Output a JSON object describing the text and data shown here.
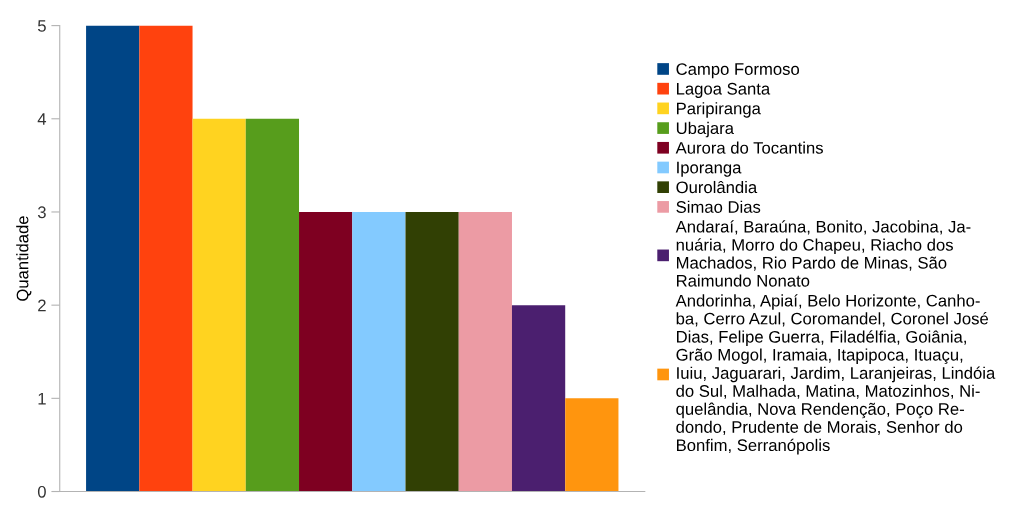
{
  "chart_data": {
    "type": "bar",
    "ylabel": "Quantidade",
    "categories": [
      null
    ],
    "ylim": [
      0,
      5
    ],
    "yticks": [
      0,
      1,
      2,
      3,
      4,
      5
    ],
    "grid": false,
    "legend": "right",
    "series": [
      {
        "name": "Campo Formoso",
        "color": "#004586",
        "values": [
          5
        ]
      },
      {
        "name": "Lagoa Santa",
        "color": "#ff420e",
        "values": [
          5
        ]
      },
      {
        "name": "Paripiranga",
        "color": "#ffd320",
        "values": [
          4
        ]
      },
      {
        "name": "Ubajara",
        "color": "#579d1c",
        "values": [
          4
        ]
      },
      {
        "name": "Aurora do Tocantins",
        "color": "#7e0021",
        "values": [
          3
        ]
      },
      {
        "name": "Iporanga",
        "color": "#83caff",
        "values": [
          3
        ]
      },
      {
        "name": "Ourolândia",
        "color": "#314004",
        "values": [
          3
        ]
      },
      {
        "name": "Simao Dias",
        "color": "#ec9ba4",
        "values": [
          3
        ]
      },
      {
        "name": "Andaraí, Baraúna, Bonito, Jacobina, Ja-\nnuária, Morro do Chapeu, Riacho dos\nMachados, Rio Pardo de Minas, São\nRaimundo Nonato",
        "color": "#4b1f6f",
        "values": [
          2
        ]
      },
      {
        "name": "Andorinha, Apiaí, Belo Horizonte, Canho-\nba, Cerro Azul, Coromandel, Coronel José\nDias, Felipe Guerra, Filadélfia, Goiânia,\nGrão Mogol, Iramaia, Itapipoca, Ituaçu,\nIuiu, Jaguarari, Jardim, Laranjeiras, Lindóia\ndo Sul, Malhada, Matina, Matozinhos, Ni-\nquelândia, Nova Rendenção, Poço Re-\ndondo, Prudente de Morais, Senhor do\nBonfim, Serranópolis",
        "color": "#ff950e",
        "values": [
          1
        ]
      }
    ]
  }
}
